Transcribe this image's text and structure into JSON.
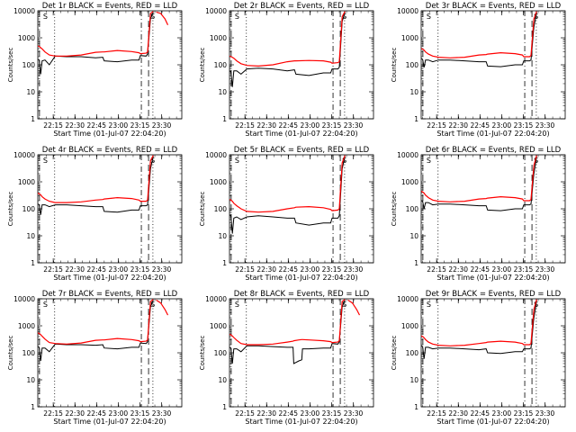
{
  "chart_data": {
    "type": "line",
    "y_scale": "log",
    "ylim": [
      1,
      10000
    ],
    "y_ticks": [
      "1",
      "10",
      "100",
      "1000",
      "10000"
    ],
    "x_ticks": [
      "22:15",
      "22:30",
      "22:45",
      "23:00",
      "23:15",
      "23:30"
    ],
    "xlim": [
      "22:04:20",
      "23:44:00"
    ],
    "ylabel": "Counts/sec",
    "xlabel": "Start Time (01-Jul-07 22:04:20)",
    "markers": {
      "dashed_lines": [
        "22:05:30",
        "23:21:00"
      ],
      "dotted_lines": [
        "22:16:00",
        "23:24:00"
      ],
      "dashdot_line": "23:16:00",
      "label": "S"
    },
    "series_colors": {
      "events": "#000000",
      "lld": "#ff0000"
    },
    "panels": [
      {
        "title": "Det 1r BLACK = Events, RED = LLD",
        "x_min": [
          0,
          1,
          2,
          3,
          5,
          8,
          12,
          20,
          30,
          40,
          45,
          46,
          55,
          65,
          70,
          71,
          75,
          76,
          78,
          79.9
        ],
        "events": [
          160,
          150,
          45,
          140,
          150,
          100,
          210,
          200,
          200,
          180,
          190,
          140,
          130,
          150,
          150,
          220,
          210,
          250,
          5000,
          9000
        ],
        "lld": [
          500,
          480,
          430,
          390,
          300,
          230,
          210,
          210,
          230,
          290,
          300,
          300,
          340,
          310,
          280,
          260,
          270,
          300,
          8000,
          9500
        ],
        "lld_tail_min": [
          82,
          85,
          88,
          90
        ],
        "lld_tail": [
          9000,
          8000,
          5000,
          3000
        ]
      },
      {
        "title": "Det 2r BLACK = Events, RED = LLD",
        "x_min": [
          0,
          1,
          2,
          3,
          5,
          8,
          12,
          20,
          30,
          40,
          45,
          46,
          55,
          65,
          70,
          71,
          75,
          76,
          78,
          79.9
        ],
        "events": [
          60,
          55,
          15,
          60,
          60,
          45,
          70,
          75,
          70,
          60,
          65,
          45,
          40,
          50,
          50,
          70,
          70,
          80,
          4000,
          9000
        ],
        "lld": [
          210,
          200,
          190,
          175,
          140,
          110,
          95,
          90,
          100,
          130,
          140,
          140,
          145,
          140,
          125,
          115,
          120,
          130,
          6000,
          9500
        ]
      },
      {
        "title": "Det 3r BLACK = Events, RED = LLD",
        "x_min": [
          0,
          1,
          2,
          3,
          5,
          8,
          12,
          20,
          30,
          40,
          45,
          46,
          55,
          65,
          70,
          71,
          75,
          76,
          78,
          79.9
        ],
        "events": [
          170,
          160,
          80,
          150,
          150,
          130,
          150,
          150,
          140,
          130,
          130,
          90,
          85,
          100,
          100,
          140,
          140,
          150,
          2500,
          9000
        ],
        "lld": [
          400,
          380,
          350,
          300,
          250,
          210,
          190,
          180,
          190,
          230,
          240,
          250,
          280,
          260,
          230,
          200,
          200,
          220,
          5000,
          9500
        ]
      },
      {
        "title": "Det 4r BLACK = Events, RED = LLD",
        "x_min": [
          0,
          1,
          2,
          3,
          5,
          8,
          12,
          20,
          30,
          40,
          45,
          46,
          55,
          65,
          70,
          71,
          75,
          76,
          78,
          79.9
        ],
        "events": [
          150,
          140,
          60,
          140,
          140,
          120,
          140,
          140,
          130,
          120,
          120,
          80,
          75,
          90,
          90,
          130,
          130,
          140,
          3000,
          9000
        ],
        "lld": [
          380,
          360,
          330,
          280,
          230,
          190,
          170,
          170,
          180,
          210,
          220,
          230,
          260,
          240,
          210,
          190,
          190,
          210,
          6000,
          9500
        ]
      },
      {
        "title": "Det 5r BLACK = Events, RED = LLD",
        "x_min": [
          0,
          1,
          2,
          3,
          5,
          8,
          12,
          20,
          30,
          40,
          45,
          46,
          55,
          65,
          70,
          71,
          75,
          76,
          78,
          79.9
        ],
        "events": [
          60,
          55,
          12,
          45,
          50,
          40,
          50,
          55,
          50,
          45,
          45,
          30,
          25,
          30,
          30,
          45,
          45,
          55,
          3000,
          9000
        ],
        "lld": [
          220,
          210,
          190,
          160,
          130,
          100,
          80,
          75,
          80,
          100,
          110,
          115,
          120,
          110,
          95,
          85,
          90,
          100,
          5000,
          9500
        ]
      },
      {
        "title": "Det 6r BLACK = Events, RED = LLD",
        "x_min": [
          0,
          1,
          2,
          3,
          5,
          8,
          12,
          20,
          30,
          40,
          45,
          46,
          55,
          65,
          70,
          71,
          75,
          76,
          78,
          79.9
        ],
        "events": [
          200,
          190,
          100,
          170,
          170,
          140,
          150,
          150,
          140,
          130,
          130,
          90,
          85,
          100,
          100,
          140,
          140,
          150,
          2000,
          9000
        ],
        "lld": [
          450,
          420,
          380,
          320,
          260,
          210,
          190,
          180,
          190,
          230,
          240,
          250,
          280,
          260,
          230,
          200,
          200,
          220,
          4000,
          9500
        ]
      },
      {
        "title": "Det 7r BLACK = Events, RED = LLD",
        "x_min": [
          0,
          1,
          2,
          3,
          5,
          8,
          12,
          20,
          30,
          40,
          45,
          46,
          55,
          65,
          70,
          71,
          75,
          76,
          78,
          79.9
        ],
        "events": [
          170,
          160,
          50,
          150,
          150,
          110,
          210,
          200,
          200,
          190,
          200,
          150,
          140,
          160,
          160,
          230,
          220,
          260,
          5000,
          9000
        ],
        "lld": [
          550,
          520,
          470,
          410,
          320,
          240,
          220,
          210,
          230,
          290,
          300,
          300,
          340,
          310,
          280,
          260,
          270,
          300,
          8000,
          9500
        ],
        "lld_tail_min": [
          82,
          85,
          88,
          90
        ],
        "lld_tail": [
          9000,
          7000,
          4000,
          2500
        ]
      },
      {
        "title": "Det 8r BLACK = Events, RED = LLD",
        "x_min": [
          0,
          1,
          2,
          3,
          5,
          8,
          12,
          20,
          30,
          40,
          44,
          44.5,
          48,
          50,
          50.5,
          55,
          65,
          70,
          71,
          75,
          76,
          78,
          79.9
        ],
        "events": [
          160,
          150,
          40,
          140,
          140,
          110,
          180,
          180,
          170,
          160,
          160,
          40,
          50,
          55,
          140,
          140,
          150,
          150,
          220,
          210,
          250,
          5000,
          9000
        ],
        "lld": [
          480,
          460,
          420,
          370,
          290,
          220,
          200,
          200,
          210,
          250,
          270,
          280,
          300,
          310,
          310,
          300,
          280,
          260,
          240,
          250,
          280,
          8000,
          9500
        ],
        "lld_tail_min": [
          82,
          85,
          88,
          90
        ],
        "lld_tail": [
          9000,
          7000,
          4000,
          2500
        ]
      },
      {
        "title": "Det 9r BLACK = Events, RED = LLD",
        "x_min": [
          0,
          1,
          2,
          3,
          5,
          8,
          12,
          20,
          30,
          40,
          45,
          46,
          55,
          65,
          70,
          71,
          75,
          76,
          78,
          79.9
        ],
        "events": [
          180,
          170,
          60,
          160,
          160,
          140,
          150,
          150,
          140,
          130,
          140,
          100,
          95,
          110,
          110,
          140,
          140,
          150,
          2000,
          9000
        ],
        "lld": [
          420,
          400,
          360,
          310,
          250,
          210,
          190,
          180,
          190,
          220,
          240,
          250,
          270,
          250,
          220,
          200,
          200,
          220,
          4000,
          9500
        ]
      }
    ]
  }
}
